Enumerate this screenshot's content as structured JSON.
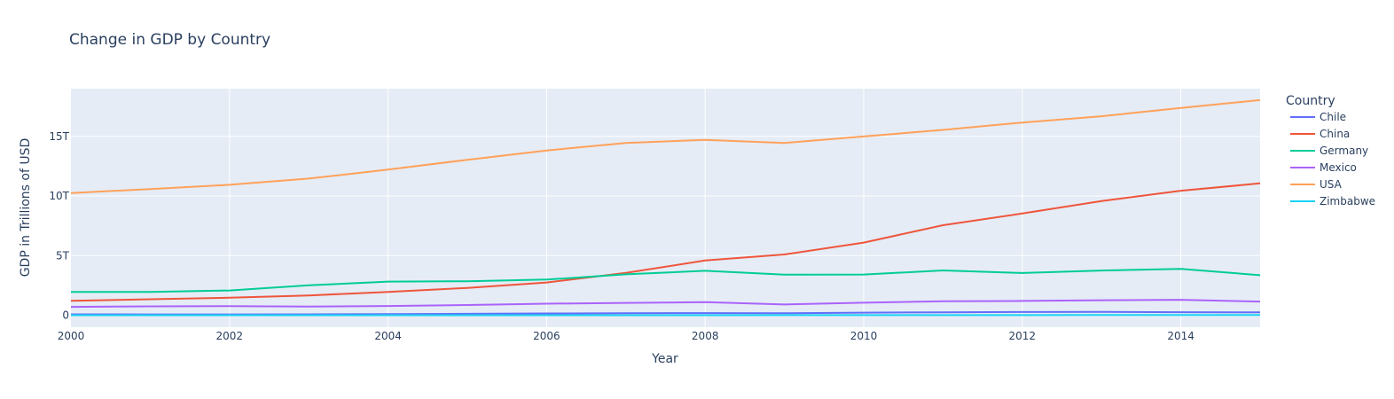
{
  "chart_data": {
    "type": "line",
    "title": "Change in GDP by Country",
    "xlabel": "Year",
    "ylabel": "GDP in Trillions of USD",
    "x": [
      2000,
      2001,
      2002,
      2003,
      2004,
      2005,
      2006,
      2007,
      2008,
      2009,
      2010,
      2011,
      2012,
      2013,
      2014,
      2015
    ],
    "xlim": [
      2000,
      2015
    ],
    "ylim": [
      -1,
      19
    ],
    "x_ticks": [
      2000,
      2002,
      2004,
      2006,
      2008,
      2010,
      2012,
      2014
    ],
    "x_tick_labels": [
      "2000",
      "2002",
      "2004",
      "2006",
      "2008",
      "2010",
      "2012",
      "2014"
    ],
    "y_ticks": [
      0,
      5,
      10,
      15
    ],
    "y_tick_labels": [
      "0",
      "5T",
      "10T",
      "15T"
    ],
    "grid": true,
    "legend_title": "Country",
    "legend_position": "right",
    "series": [
      {
        "name": "Chile",
        "color": "#636efa",
        "values": [
          0.08,
          0.07,
          0.07,
          0.08,
          0.1,
          0.12,
          0.15,
          0.17,
          0.18,
          0.17,
          0.22,
          0.25,
          0.27,
          0.28,
          0.26,
          0.24
        ]
      },
      {
        "name": "China",
        "color": "#ef553b",
        "values": [
          1.21,
          1.34,
          1.47,
          1.66,
          1.96,
          2.29,
          2.75,
          3.55,
          4.59,
          5.1,
          6.09,
          7.55,
          8.53,
          9.57,
          10.44,
          11.06
        ]
      },
      {
        "name": "Germany",
        "color": "#00cc96",
        "values": [
          1.95,
          1.95,
          2.08,
          2.51,
          2.82,
          2.85,
          2.99,
          3.43,
          3.73,
          3.41,
          3.42,
          3.76,
          3.54,
          3.75,
          3.89,
          3.36
        ]
      },
      {
        "name": "Mexico",
        "color": "#ab63fa",
        "values": [
          0.7,
          0.75,
          0.77,
          0.73,
          0.78,
          0.86,
          0.97,
          1.04,
          1.1,
          0.9,
          1.05,
          1.17,
          1.2,
          1.26,
          1.3,
          1.15
        ]
      },
      {
        "name": "USA",
        "color": "#ffa15a",
        "values": [
          10.25,
          10.58,
          10.94,
          11.46,
          12.21,
          13.04,
          13.82,
          14.45,
          14.71,
          14.45,
          14.99,
          15.54,
          16.16,
          16.69,
          17.39,
          18.04
        ]
      },
      {
        "name": "Zimbabwe",
        "color": "#19d3f3",
        "values": [
          0.007,
          0.007,
          0.006,
          0.006,
          0.006,
          0.006,
          0.005,
          0.005,
          0.004,
          0.008,
          0.01,
          0.012,
          0.014,
          0.015,
          0.016,
          0.016
        ]
      }
    ]
  }
}
